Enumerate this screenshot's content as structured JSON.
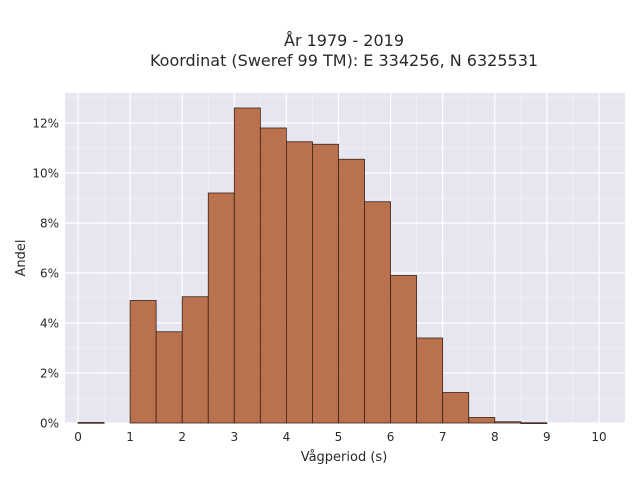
{
  "chart_data": {
    "type": "bar",
    "title_line1": "År 1979 - 2019",
    "title_line2": "Koordinat (Sweref 99 TM): E 334256, N 6325531",
    "xlabel": "Vågperiod (s)",
    "ylabel": "Andel",
    "bin_width": 0.5,
    "bin_starts": [
      0,
      0.5,
      1,
      1.5,
      2,
      2.5,
      3,
      3.5,
      4,
      4.5,
      5,
      5.5,
      6,
      6.5,
      7,
      7.5,
      8,
      8.5,
      9,
      9.5
    ],
    "values": [
      0.0002,
      0,
      0.049,
      0.0365,
      0.0505,
      0.092,
      0.126,
      0.118,
      0.1125,
      0.1115,
      0.1055,
      0.0885,
      0.059,
      0.034,
      0.0122,
      0.0022,
      0.0005,
      0.0001,
      0,
      0
    ],
    "xlim": [
      -0.25,
      10.5
    ],
    "ylim": [
      0,
      0.132
    ],
    "xticks": [
      "0",
      "1",
      "2",
      "3",
      "4",
      "5",
      "6",
      "7",
      "8",
      "9",
      "10"
    ],
    "yticks": [
      {
        "value": 0,
        "label": "0%"
      },
      {
        "value": 0.02,
        "label": "2%"
      },
      {
        "value": 0.04,
        "label": "4%"
      },
      {
        "value": 0.06,
        "label": "6%"
      },
      {
        "value": 0.08,
        "label": "8%"
      },
      {
        "value": 0.1,
        "label": "10%"
      },
      {
        "value": 0.12,
        "label": "12%"
      }
    ],
    "grid": true,
    "bar_color": "#b5643c",
    "bar_edge_color": "#3b2418",
    "plot_background": "#e6e6f0"
  }
}
